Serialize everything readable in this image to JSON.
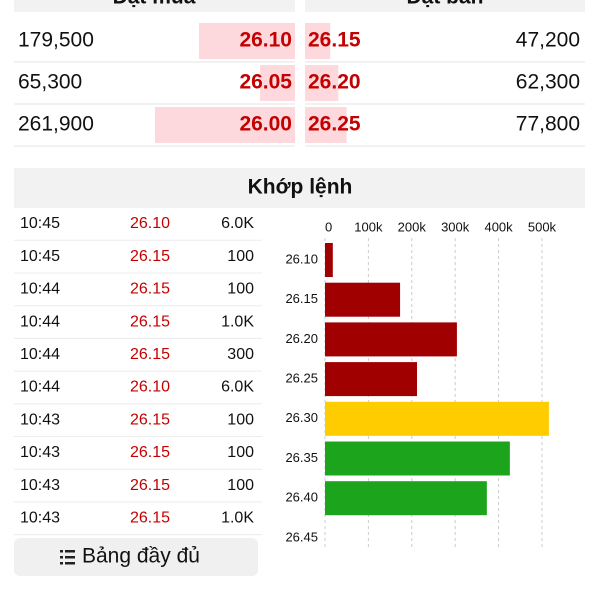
{
  "order_book": {
    "bid_header": "Đặt mua",
    "ask_header": "Đặt bán",
    "bids": [
      {
        "volume": {
          "value": 179500,
          "label": "179,500"
        },
        "price": "26.10"
      },
      {
        "volume": {
          "value": 65300,
          "label": "65,300"
        },
        "price": "26.05"
      },
      {
        "volume": {
          "value": 261900,
          "label": "261,900"
        },
        "price": "26.00"
      }
    ],
    "asks": [
      {
        "price": "26.15",
        "volume": {
          "value": 47200,
          "label": "47,200"
        }
      },
      {
        "price": "26.20",
        "volume": {
          "value": 62300,
          "label": "62,300"
        }
      },
      {
        "price": "26.25",
        "volume": {
          "value": 77800,
          "label": "77,800"
        }
      }
    ]
  },
  "matched": {
    "title": "Khớp lệnh",
    "trades": [
      {
        "time": "10:45",
        "price": "26.10",
        "volume": "6.0K"
      },
      {
        "time": "10:45",
        "price": "26.15",
        "volume": "100"
      },
      {
        "time": "10:44",
        "price": "26.15",
        "volume": "100"
      },
      {
        "time": "10:44",
        "price": "26.15",
        "volume": "1.0K"
      },
      {
        "time": "10:44",
        "price": "26.15",
        "volume": "300"
      },
      {
        "time": "10:44",
        "price": "26.10",
        "volume": "6.0K"
      },
      {
        "time": "10:43",
        "price": "26.15",
        "volume": "100"
      },
      {
        "time": "10:43",
        "price": "26.15",
        "volume": "100"
      },
      {
        "time": "10:43",
        "price": "26.15",
        "volume": "100"
      },
      {
        "time": "10:43",
        "price": "26.15",
        "volume": "1.0K"
      }
    ]
  },
  "chart_data": {
    "type": "bar",
    "orientation": "horizontal",
    "categories": [
      "26.10",
      "26.15",
      "26.20",
      "26.25",
      "26.30",
      "26.35",
      "26.40",
      "26.45"
    ],
    "values": [
      18000,
      173000,
      304000,
      212000,
      516000,
      426000,
      373000,
      null
    ],
    "colors": [
      "#a00000",
      "#a00000",
      "#a00000",
      "#a00000",
      "#ffcc00",
      "#1ca51c",
      "#1ca51c",
      "#1ca51c"
    ],
    "xlim": [
      0,
      560000
    ],
    "xticks": [
      0,
      {
        "value": 100000,
        "label": "100k"
      },
      {
        "value": 200000,
        "label": "200k"
      },
      {
        "value": 300000,
        "label": "300k"
      },
      {
        "value": 400000,
        "label": "400k"
      },
      {
        "value": 500000,
        "label": "500k"
      }
    ],
    "grid": true
  },
  "button": {
    "label": "Bảng đầy đủ"
  }
}
